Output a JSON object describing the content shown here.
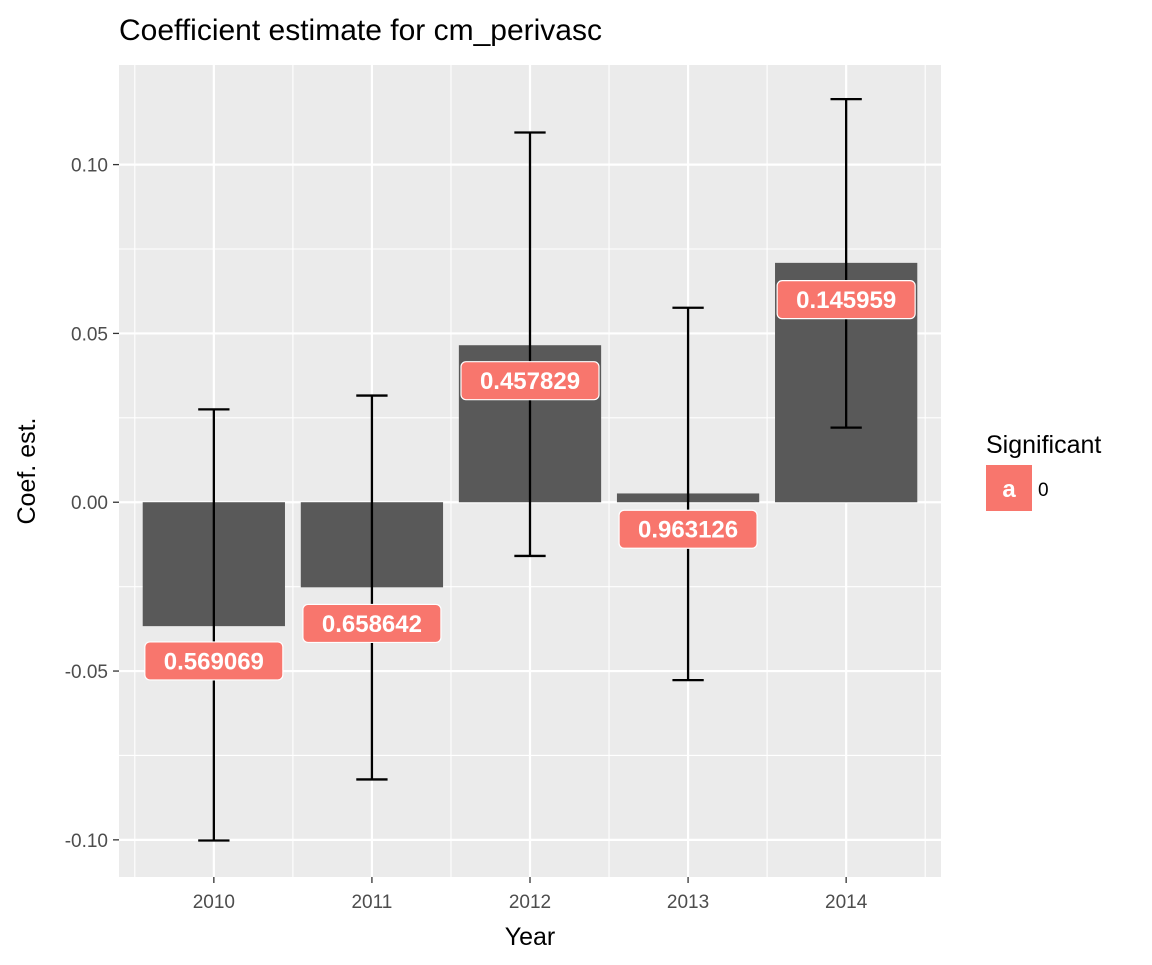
{
  "chart_data": {
    "type": "bar",
    "title": "Coefficient estimate for cm_perivasc",
    "xlabel": "Year",
    "ylabel": "Coef. est.",
    "categories": [
      "2010",
      "2011",
      "2012",
      "2013",
      "2014"
    ],
    "values": [
      -0.0367,
      -0.0252,
      0.0465,
      0.0026,
      0.0709
    ],
    "error_lower": [
      -0.1002,
      -0.0821,
      -0.0159,
      -0.0527,
      0.0221
    ],
    "error_upper": [
      0.0275,
      0.0316,
      0.1095,
      0.0576,
      0.1194
    ],
    "labels": [
      "0.569069",
      "0.658642",
      "0.457829",
      "0.963126",
      "0.145959"
    ],
    "label_y": [
      -0.047,
      -0.0359,
      0.036,
      -0.008,
      0.06
    ],
    "ylim": [
      -0.111,
      0.1295
    ],
    "yticks": [
      -0.1,
      -0.05,
      0.0,
      0.05,
      0.1
    ],
    "ytick_labels": [
      "-0.10",
      "-0.05",
      "0.00",
      "0.05",
      "0.10"
    ],
    "grid": true,
    "legend": {
      "title": "Significant",
      "position": "right",
      "items": [
        {
          "key": "a",
          "label": "0",
          "color": "#F8766D"
        }
      ]
    },
    "colors": {
      "bar": "#595959",
      "label_fill": "#F8766D",
      "panel": "#EBEBEB",
      "grid": "#FFFFFF",
      "errorbar": "#000000"
    }
  }
}
